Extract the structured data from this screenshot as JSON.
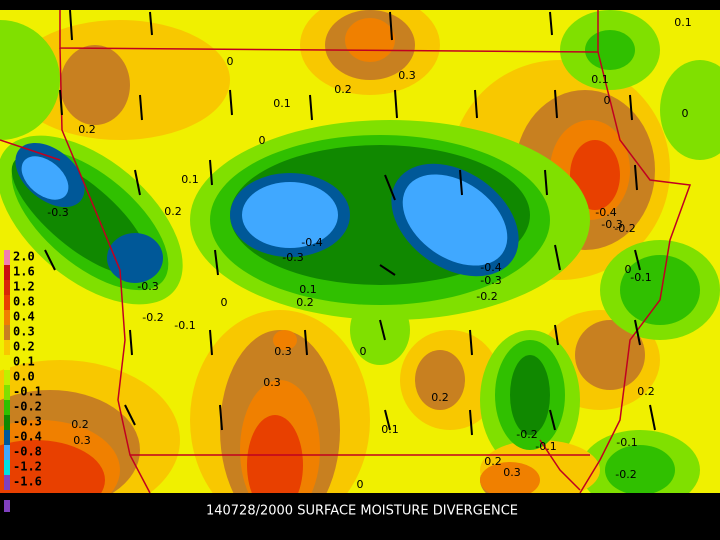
{
  "caption": "140728/2000 SURFACE MOISTURE DIVERGENCE",
  "legend": {
    "labels": [
      "2.0",
      "1.6",
      "1.2",
      "0.8",
      "0.4",
      "0.3",
      "0.2",
      "0.1",
      "0.0",
      "-0.1",
      "-0.2",
      "-0.3",
      "-0.4",
      "-0.8",
      "-1.2",
      "-1.6"
    ],
    "colors": [
      "#f080b0",
      "#c81010",
      "#d82808",
      "#e84000",
      "#f08000",
      "#c88020",
      "#f8c800",
      "#f0f000",
      "#c0f000",
      "#80e000",
      "#30c000",
      "#108800",
      "#005898",
      "#40a8ff",
      "#00e0e0",
      "#8040c0"
    ]
  },
  "contour_labels": [
    "0.1",
    "0",
    "0.3",
    "0.2",
    "0.1",
    "0.1",
    "0",
    "0",
    "0.2",
    "0",
    "0.1",
    "0.2",
    "-0.3",
    "-0.4",
    "-0.3",
    "-0.4",
    "-0.3",
    "-0.2",
    "-0.4",
    "-0.3",
    "-0.2",
    "0",
    "-0.1",
    "-0.3",
    "0.1",
    "0.2",
    "0",
    "-0.2",
    "-0.1",
    "0.3",
    "0",
    "0.3",
    "0.2",
    "0.1",
    "0.2",
    "0.3",
    "-0.2",
    "-0.1",
    "0.2",
    "-0.1",
    "0.2",
    "0.3",
    "-0.2",
    "0"
  ]
}
